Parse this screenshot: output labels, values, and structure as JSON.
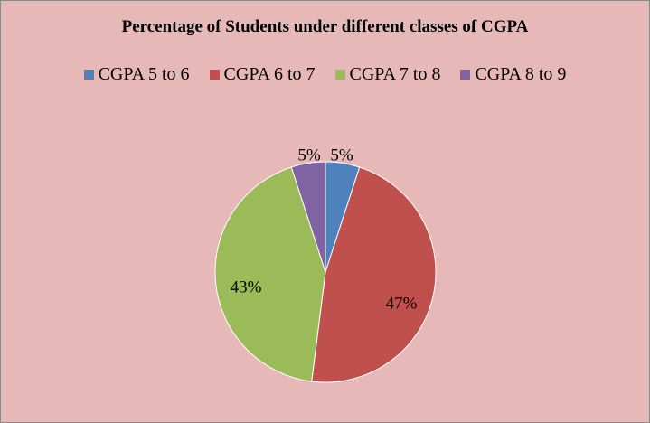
{
  "chart_data": {
    "type": "pie",
    "title": "Percentage of Students under different  classes of CGPA",
    "legend_position": "top",
    "slices": [
      {
        "label": "CGPA 5 to 6",
        "value": 5,
        "value_label": "5%",
        "color": "#4f81bd"
      },
      {
        "label": "CGPA 6 to 7",
        "value": 47,
        "value_label": "47%",
        "color": "#c0504d"
      },
      {
        "label": "CGPA 7 to 8",
        "value": 43,
        "value_label": "43%",
        "color": "#9bbb59"
      },
      {
        "label": "CGPA 8 to 9",
        "value": 5,
        "value_label": "5%",
        "color": "#8064a2"
      }
    ]
  }
}
